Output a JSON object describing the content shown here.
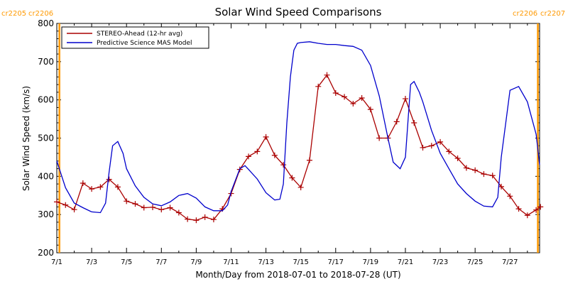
{
  "chart_data": {
    "type": "line",
    "title": "Solar Wind Speed Comparisons",
    "xlabel": "Month/Day from 2018-07-01 to 2018-07-28 (UT)",
    "ylabel": "Solar Wind Speed (km/s)",
    "xlim": [
      1.0,
      28.7
    ],
    "ylim": [
      200,
      800
    ],
    "legend_position": "top-left",
    "grid": false,
    "x_ticks": [
      {
        "value": 1,
        "label": "7/1"
      },
      {
        "value": 3,
        "label": "7/3"
      },
      {
        "value": 5,
        "label": "7/5"
      },
      {
        "value": 7,
        "label": "7/7"
      },
      {
        "value": 9,
        "label": "7/9"
      },
      {
        "value": 11,
        "label": "7/11"
      },
      {
        "value": 13,
        "label": "7/13"
      },
      {
        "value": 15,
        "label": "7/15"
      },
      {
        "value": 17,
        "label": "7/17"
      },
      {
        "value": 19,
        "label": "7/19"
      },
      {
        "value": 21,
        "label": "7/21"
      },
      {
        "value": 23,
        "label": "7/23"
      },
      {
        "value": 25,
        "label": "7/25"
      },
      {
        "value": 27,
        "label": "7/27"
      }
    ],
    "y_ticks": [
      200,
      300,
      400,
      500,
      600,
      700,
      800
    ],
    "carrington": {
      "top_left": [
        "cr2205",
        "cr2206"
      ],
      "top_right": [
        "cr2206",
        "cr2207"
      ],
      "marker_x": [
        1.15,
        28.6
      ],
      "color": "#ff9900"
    },
    "series": [
      {
        "name": "STEREO-Ahead (12-hr avg)",
        "color": "#aa0000",
        "marker": "plus",
        "x": [
          1.0,
          1.5,
          2.0,
          2.5,
          3.0,
          3.5,
          4.0,
          4.5,
          5.0,
          5.5,
          6.0,
          6.5,
          7.0,
          7.5,
          8.0,
          8.5,
          9.0,
          9.5,
          10.0,
          10.5,
          11.0,
          11.5,
          12.0,
          12.5,
          13.0,
          13.5,
          14.0,
          14.5,
          15.0,
          15.5,
          16.0,
          16.5,
          17.0,
          17.5,
          18.0,
          18.5,
          19.0,
          19.5,
          20.0,
          20.5,
          21.0,
          21.5,
          22.0,
          22.5,
          23.0,
          23.5,
          24.0,
          24.5,
          25.0,
          25.5,
          26.0,
          26.5,
          27.0,
          27.5,
          28.0,
          28.5,
          28.75
        ],
        "y": [
          333,
          325,
          313,
          382,
          367,
          372,
          392,
          372,
          335,
          328,
          318,
          319,
          313,
          318,
          305,
          288,
          285,
          293,
          287,
          315,
          355,
          418,
          452,
          465,
          503,
          455,
          430,
          396,
          371,
          442,
          635,
          665,
          618,
          608,
          590,
          605,
          575,
          500,
          500,
          543,
          603,
          540,
          475,
          480,
          490,
          465,
          447,
          422,
          416,
          406,
          402,
          373,
          348,
          315,
          298,
          312,
          320
        ]
      },
      {
        "name": "Predictive Science MAS Model",
        "color": "#0000cc",
        "marker": "none",
        "x": [
          1.0,
          1.5,
          2.0,
          2.5,
          3.0,
          3.5,
          3.8,
          4.0,
          4.2,
          4.5,
          4.8,
          5.0,
          5.5,
          6.0,
          6.5,
          7.0,
          7.5,
          8.0,
          8.5,
          9.0,
          9.5,
          10.0,
          10.5,
          10.8,
          11.0,
          11.5,
          11.8,
          12.0,
          12.5,
          13.0,
          13.5,
          13.8,
          14.0,
          14.2,
          14.4,
          14.5,
          14.6,
          14.8,
          15.0,
          15.5,
          16.0,
          16.5,
          17.0,
          17.5,
          18.0,
          18.5,
          19.0,
          19.5,
          20.0,
          20.3,
          20.7,
          21.0,
          21.3,
          21.5,
          21.8,
          22.0,
          22.5,
          23.0,
          23.5,
          24.0,
          24.5,
          25.0,
          25.5,
          26.0,
          26.3,
          26.5,
          26.8,
          27.0,
          27.5,
          28.0,
          28.5,
          28.7
        ],
        "y": [
          440,
          370,
          330,
          318,
          307,
          305,
          330,
          410,
          480,
          491,
          460,
          420,
          375,
          345,
          328,
          323,
          333,
          350,
          355,
          343,
          320,
          310,
          310,
          325,
          360,
          420,
          428,
          418,
          393,
          357,
          338,
          340,
          380,
          540,
          660,
          695,
          730,
          748,
          750,
          752,
          748,
          745,
          745,
          742,
          740,
          730,
          690,
          610,
          500,
          437,
          420,
          450,
          640,
          648,
          620,
          595,
          520,
          460,
          420,
          380,
          355,
          335,
          322,
          320,
          345,
          450,
          555,
          625,
          635,
          595,
          510,
          430
        ]
      }
    ]
  }
}
